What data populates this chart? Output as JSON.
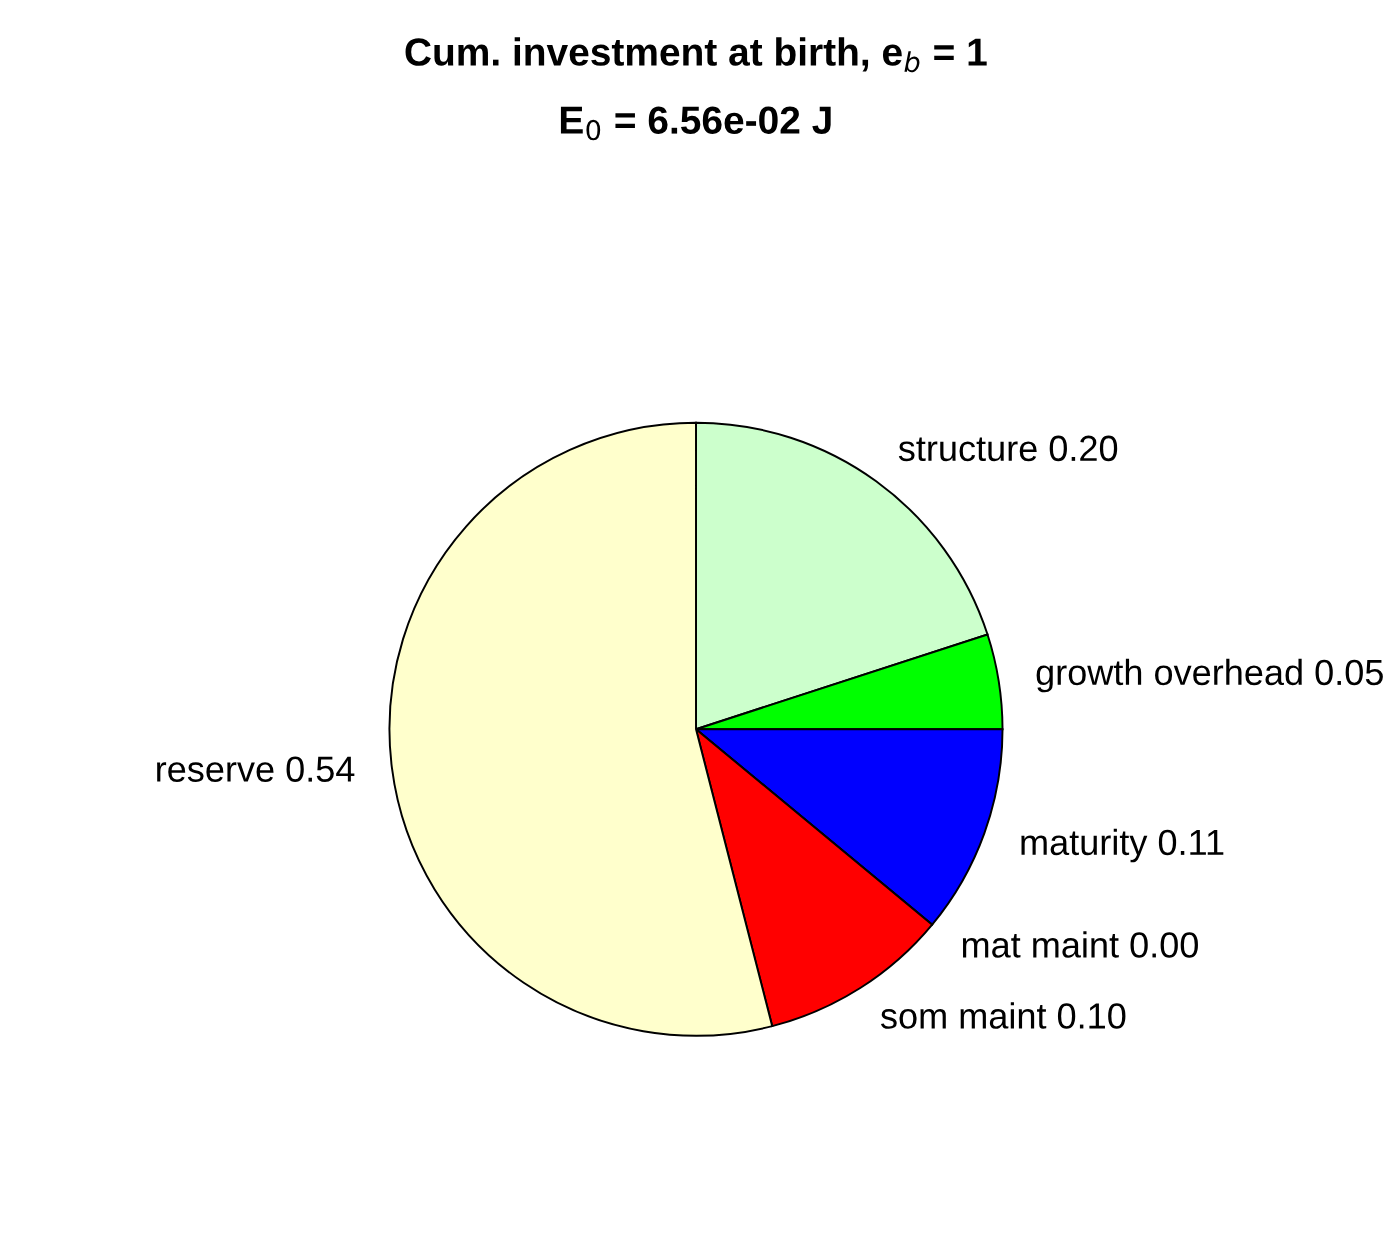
{
  "chart_data": {
    "type": "pie",
    "title": "Cum. investment at birth, e$_{b}$ = 1",
    "subtitle": "E$_{0}$ = 6.56e-02 J",
    "categories": [
      "structure",
      "growth overhead",
      "maturity",
      "mat maint",
      "som maint",
      "reserve"
    ],
    "values": [
      0.2,
      0.05,
      0.11,
      0.0,
      0.1,
      0.54
    ],
    "value_labels": [
      "0.20",
      "0.05",
      "0.11",
      "0.00",
      "0.10",
      "0.54"
    ],
    "colors": [
      "#ccffcc",
      "#00ff00",
      "#0000ff",
      "#ff00ff",
      "#ff0000",
      "#ffffcc"
    ],
    "legend": false
  }
}
